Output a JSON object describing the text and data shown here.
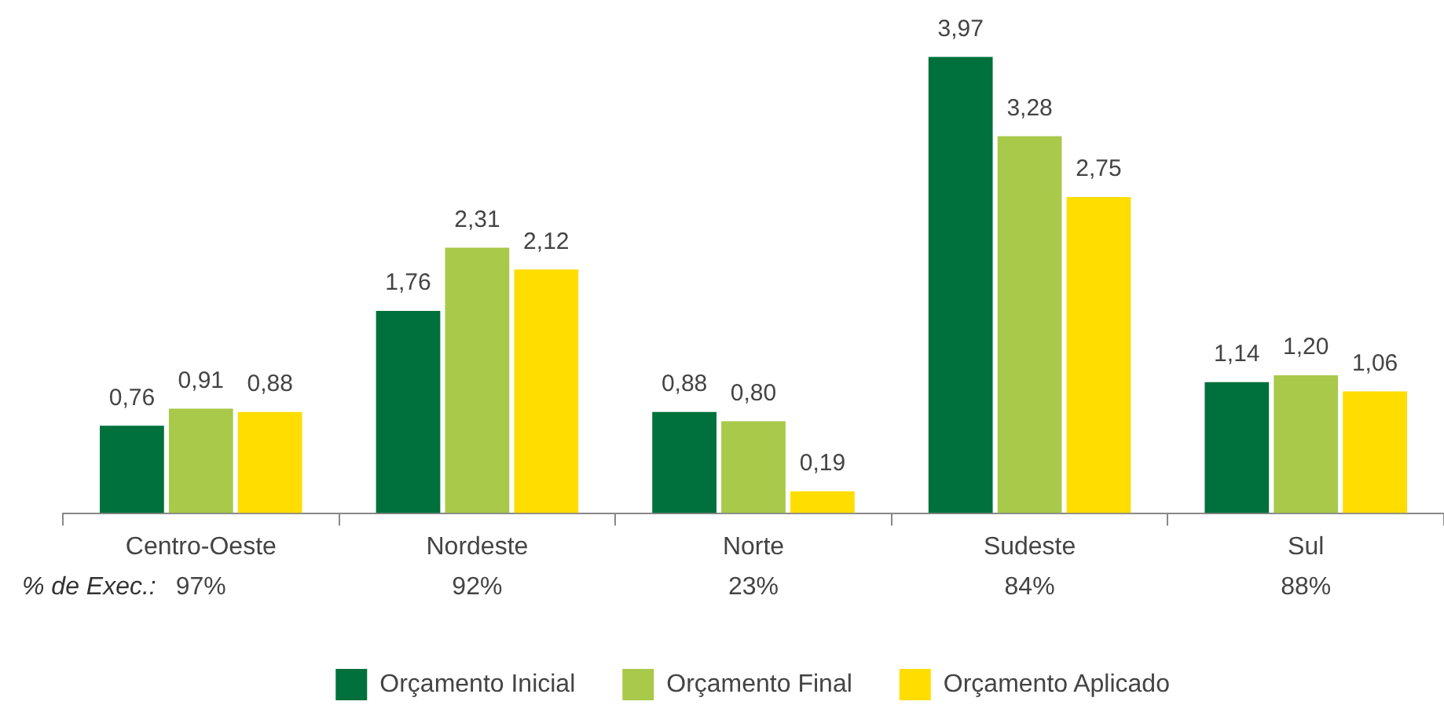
{
  "chart_data": {
    "type": "bar",
    "categories": [
      "Centro-Oeste",
      "Nordeste",
      "Norte",
      "Sudeste",
      "Sul"
    ],
    "series": [
      {
        "name": "Orçamento Inicial",
        "color": "#00703c",
        "values": [
          0.76,
          1.76,
          0.88,
          3.97,
          1.14
        ],
        "value_labels": [
          "0,76",
          "1,76",
          "0,88",
          "3,97",
          "1,14"
        ]
      },
      {
        "name": "Orçamento Final",
        "color": "#a8c94a",
        "values": [
          0.91,
          2.31,
          0.8,
          3.28,
          1.2
        ],
        "value_labels": [
          "0,91",
          "2,31",
          "0,80",
          "3,28",
          "1,20"
        ]
      },
      {
        "name": "Orçamento Aplicado",
        "color": "#ffdd00",
        "values": [
          0.88,
          2.12,
          0.19,
          2.75,
          1.06
        ],
        "value_labels": [
          "0,88",
          "2,12",
          "0,19",
          "2,75",
          "1,06"
        ]
      }
    ],
    "legend": "bottom",
    "grid": false,
    "tick_labels": "x",
    "annotations": [
      "% de Exec.:",
      "97%",
      "92%",
      "23%",
      "84%",
      "88%"
    ]
  }
}
